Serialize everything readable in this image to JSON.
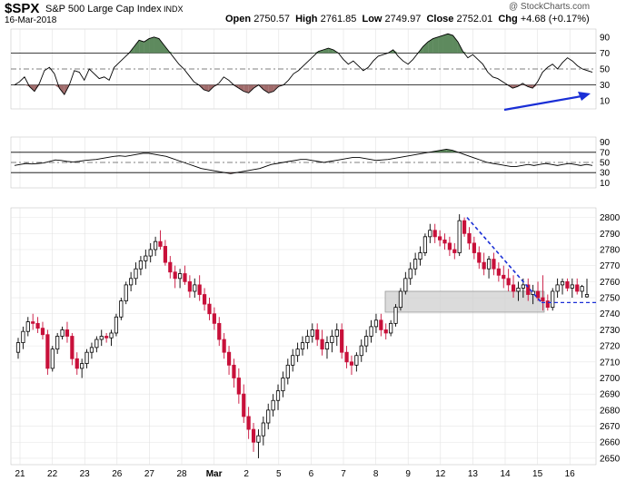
{
  "header": {
    "ticker": "$SPX",
    "name": "S&P 500 Large Cap Index",
    "exchange": "INDX",
    "date": "16-Mar-2018",
    "open_label": "Open",
    "open": "2750.57",
    "high_label": "High",
    "high": "2761.85",
    "low_label": "Low",
    "low": "2749.97",
    "close_label": "Close",
    "close": "2752.01",
    "chg_label": "Chg",
    "chg": "+4.68 (+0.17%)",
    "brand": "@ StockCharts.com"
  },
  "chart_data": {
    "type": "candlestick",
    "x_labels": [
      "21",
      "22",
      "23",
      "26",
      "27",
      "28",
      "Mar",
      "2",
      "5",
      "6",
      "7",
      "8",
      "9",
      "12",
      "13",
      "14",
      "15",
      "16"
    ],
    "y_ticks": [
      2650,
      2660,
      2670,
      2680,
      2690,
      2700,
      2710,
      2720,
      2730,
      2740,
      2750,
      2760,
      2770,
      2780,
      2790,
      2800
    ],
    "ylim": [
      2646,
      2806
    ],
    "candles": [
      [
        2716,
        2725,
        2712,
        2722
      ],
      [
        2722,
        2732,
        2718,
        2729
      ],
      [
        2729,
        2738,
        2726,
        2735
      ],
      [
        2735,
        2740,
        2730,
        2734
      ],
      [
        2734,
        2738,
        2728,
        2731
      ],
      [
        2731,
        2735,
        2724,
        2727
      ],
      [
        2727,
        2730,
        2702,
        2706
      ],
      [
        2706,
        2720,
        2704,
        2718
      ],
      [
        2718,
        2728,
        2715,
        2726
      ],
      [
        2726,
        2732,
        2724,
        2730
      ],
      [
        2730,
        2735,
        2722,
        2726
      ],
      [
        2726,
        2728,
        2708,
        2712
      ],
      [
        2712,
        2716,
        2702,
        2706
      ],
      [
        2706,
        2712,
        2700,
        2709
      ],
      [
        2709,
        2718,
        2706,
        2716
      ],
      [
        2716,
        2722,
        2712,
        2719
      ],
      [
        2719,
        2726,
        2716,
        2724
      ],
      [
        2724,
        2730,
        2720,
        2726
      ],
      [
        2726,
        2728,
        2722,
        2725
      ],
      [
        2725,
        2730,
        2720,
        2728
      ],
      [
        2728,
        2740,
        2726,
        2738
      ],
      [
        2738,
        2750,
        2736,
        2748
      ],
      [
        2748,
        2760,
        2746,
        2758
      ],
      [
        2758,
        2766,
        2754,
        2762
      ],
      [
        2762,
        2772,
        2758,
        2768
      ],
      [
        2768,
        2776,
        2764,
        2773
      ],
      [
        2773,
        2780,
        2768,
        2776
      ],
      [
        2776,
        2784,
        2772,
        2780
      ],
      [
        2780,
        2788,
        2776,
        2785
      ],
      [
        2785,
        2792,
        2780,
        2782
      ],
      [
        2782,
        2786,
        2770,
        2772
      ],
      [
        2772,
        2776,
        2762,
        2766
      ],
      [
        2766,
        2770,
        2756,
        2762
      ],
      [
        2762,
        2768,
        2756,
        2765
      ],
      [
        2765,
        2770,
        2758,
        2760
      ],
      [
        2760,
        2764,
        2750,
        2754
      ],
      [
        2754,
        2762,
        2750,
        2758
      ],
      [
        2758,
        2764,
        2748,
        2752
      ],
      [
        2752,
        2756,
        2742,
        2746
      ],
      [
        2746,
        2750,
        2736,
        2740
      ],
      [
        2740,
        2744,
        2730,
        2734
      ],
      [
        2734,
        2738,
        2720,
        2724
      ],
      [
        2724,
        2728,
        2712,
        2716
      ],
      [
        2716,
        2720,
        2702,
        2708
      ],
      [
        2708,
        2712,
        2694,
        2700
      ],
      [
        2700,
        2706,
        2684,
        2690
      ],
      [
        2690,
        2696,
        2672,
        2676
      ],
      [
        2676,
        2682,
        2662,
        2668
      ],
      [
        2668,
        2672,
        2654,
        2660
      ],
      [
        2660,
        2668,
        2650,
        2664
      ],
      [
        2664,
        2676,
        2658,
        2672
      ],
      [
        2672,
        2684,
        2668,
        2680
      ],
      [
        2680,
        2690,
        2676,
        2686
      ],
      [
        2686,
        2696,
        2680,
        2692
      ],
      [
        2692,
        2704,
        2688,
        2700
      ],
      [
        2700,
        2712,
        2696,
        2708
      ],
      [
        2708,
        2718,
        2704,
        2714
      ],
      [
        2714,
        2722,
        2710,
        2718
      ],
      [
        2718,
        2726,
        2714,
        2722
      ],
      [
        2722,
        2730,
        2718,
        2726
      ],
      [
        2726,
        2734,
        2722,
        2730
      ],
      [
        2730,
        2734,
        2720,
        2724
      ],
      [
        2724,
        2730,
        2714,
        2718
      ],
      [
        2718,
        2726,
        2712,
        2722
      ],
      [
        2722,
        2730,
        2716,
        2726
      ],
      [
        2726,
        2734,
        2720,
        2730
      ],
      [
        2730,
        2734,
        2712,
        2716
      ],
      [
        2716,
        2720,
        2706,
        2710
      ],
      [
        2710,
        2714,
        2702,
        2708
      ],
      [
        2708,
        2716,
        2704,
        2714
      ],
      [
        2714,
        2724,
        2710,
        2720
      ],
      [
        2720,
        2730,
        2716,
        2726
      ],
      [
        2726,
        2736,
        2722,
        2732
      ],
      [
        2732,
        2740,
        2728,
        2736
      ],
      [
        2736,
        2740,
        2726,
        2730
      ],
      [
        2730,
        2734,
        2724,
        2728
      ],
      [
        2728,
        2736,
        2726,
        2734
      ],
      [
        2734,
        2746,
        2732,
        2744
      ],
      [
        2744,
        2756,
        2742,
        2754
      ],
      [
        2754,
        2766,
        2752,
        2762
      ],
      [
        2762,
        2772,
        2758,
        2768
      ],
      [
        2768,
        2778,
        2764,
        2774
      ],
      [
        2774,
        2782,
        2770,
        2778
      ],
      [
        2778,
        2790,
        2776,
        2788
      ],
      [
        2788,
        2796,
        2784,
        2792
      ],
      [
        2792,
        2796,
        2784,
        2788
      ],
      [
        2788,
        2792,
        2782,
        2786
      ],
      [
        2786,
        2790,
        2780,
        2784
      ],
      [
        2784,
        2788,
        2776,
        2780
      ],
      [
        2780,
        2784,
        2774,
        2778
      ],
      [
        2778,
        2802,
        2776,
        2798
      ],
      [
        2798,
        2800,
        2788,
        2790
      ],
      [
        2790,
        2794,
        2780,
        2784
      ],
      [
        2784,
        2788,
        2774,
        2778
      ],
      [
        2778,
        2782,
        2768,
        2772
      ],
      [
        2772,
        2778,
        2764,
        2768
      ],
      [
        2768,
        2776,
        2762,
        2774
      ],
      [
        2774,
        2778,
        2764,
        2768
      ],
      [
        2768,
        2772,
        2760,
        2764
      ],
      [
        2764,
        2770,
        2756,
        2762
      ],
      [
        2762,
        2768,
        2754,
        2758
      ],
      [
        2758,
        2764,
        2750,
        2754
      ],
      [
        2754,
        2760,
        2748,
        2756
      ],
      [
        2756,
        2762,
        2750,
        2758
      ],
      [
        2758,
        2762,
        2748,
        2752
      ],
      [
        2752,
        2758,
        2746,
        2754
      ],
      [
        2754,
        2760,
        2748,
        2750
      ],
      [
        2750,
        2764,
        2742,
        2748
      ],
      [
        2748,
        2752,
        2742,
        2744
      ],
      [
        2744,
        2756,
        2742,
        2754
      ],
      [
        2754,
        2762,
        2750,
        2758
      ],
      [
        2758,
        2762,
        2752,
        2760
      ],
      [
        2760,
        2762,
        2754,
        2756
      ],
      [
        2756,
        2762,
        2750,
        2758
      ],
      [
        2758,
        2762,
        2752,
        2754
      ],
      [
        2754,
        2758,
        2750,
        2757
      ],
      [
        2750.57,
        2761.85,
        2749.97,
        2752.01
      ]
    ],
    "osc1": {
      "y_ticks": [
        10,
        30,
        50,
        70,
        90
      ],
      "ylim": [
        0,
        100
      ],
      "ref_lines": [
        30,
        50,
        70
      ],
      "values": [
        30,
        34,
        40,
        28,
        22,
        32,
        48,
        52,
        44,
        26,
        18,
        30,
        48,
        46,
        36,
        50,
        44,
        38,
        40,
        36,
        52,
        58,
        64,
        70,
        78,
        86,
        84,
        88,
        90,
        88,
        80,
        72,
        64,
        56,
        50,
        42,
        34,
        30,
        24,
        22,
        28,
        32,
        40,
        36,
        30,
        26,
        22,
        20,
        26,
        30,
        24,
        20,
        22,
        28,
        30,
        36,
        44,
        48,
        54,
        60,
        66,
        72,
        74,
        76,
        74,
        70,
        62,
        56,
        60,
        54,
        48,
        52,
        60,
        66,
        68,
        70,
        74,
        66,
        60,
        56,
        62,
        70,
        78,
        84,
        88,
        90,
        92,
        94,
        92,
        84,
        72,
        64,
        68,
        62,
        56,
        46,
        40,
        38,
        34,
        30,
        26,
        28,
        32,
        28,
        26,
        34,
        46,
        52,
        56,
        50,
        58,
        64,
        60,
        54,
        50,
        48,
        46
      ]
    },
    "osc2": {
      "y_ticks": [
        10,
        30,
        50,
        70,
        90
      ],
      "ylim": [
        0,
        100
      ],
      "ref_lines": [
        30,
        50,
        70
      ],
      "values": [
        44,
        46,
        48,
        47,
        48,
        49,
        52,
        55,
        54,
        52,
        51,
        52,
        54,
        55,
        56,
        58,
        60,
        62,
        63,
        62,
        64,
        66,
        68,
        68,
        66,
        64,
        62,
        58,
        54,
        50,
        46,
        42,
        38,
        36,
        34,
        32,
        30,
        28,
        30,
        32,
        34,
        36,
        38,
        42,
        46,
        48,
        50,
        52,
        54,
        56,
        56,
        54,
        52,
        50,
        52,
        54,
        56,
        58,
        60,
        60,
        58,
        56,
        54,
        55,
        56,
        58,
        60,
        62,
        64,
        66,
        68,
        70,
        72,
        74,
        76,
        74,
        70,
        66,
        62,
        58,
        54,
        50,
        48,
        46,
        44,
        42,
        42,
        44,
        46,
        44,
        46,
        48,
        46,
        44,
        46,
        48,
        46,
        44,
        46,
        44
      ]
    }
  }
}
